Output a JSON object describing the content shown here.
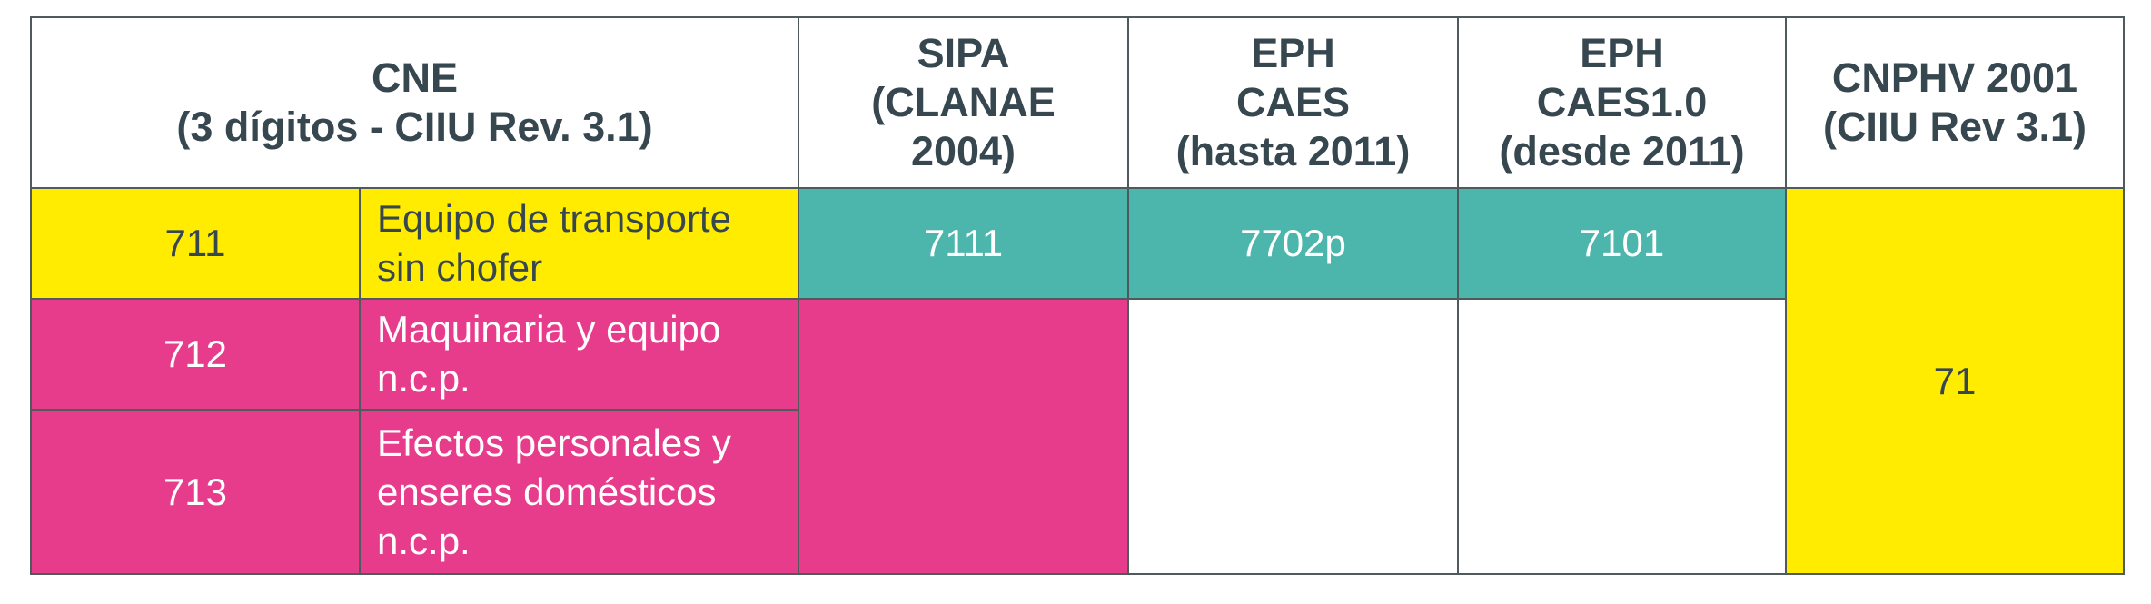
{
  "header": {
    "cne": "CNE\n(3 dígitos - CIIU Rev. 3.1)",
    "sipa": "SIPA\n(CLANAE\n2004)",
    "eph_caes": "EPH\nCAES\n(hasta 2011)",
    "eph_caes10": "EPH\nCAES1.0\n(desde 2011)",
    "cnphv": "CNPHV 2001\n(CIIU Rev 3.1)"
  },
  "rows": [
    {
      "code": "711",
      "description": "Equipo de transporte\nsin chofer",
      "sipa": "7111",
      "eph_caes": "7702p",
      "eph_caes10": "7101"
    },
    {
      "code": "712",
      "description": "Maquinaria y equipo\nn.c.p."
    },
    {
      "code": "713",
      "description": "Efectos personales y\nenseres domésticos\nn.c.p."
    }
  ],
  "cnphv_value": "71",
  "colors": {
    "yellow": "#ffec00",
    "teal": "#4db6ac",
    "pink": "#e73c8c",
    "border": "#4f5a5c",
    "header_text": "#37474f"
  }
}
